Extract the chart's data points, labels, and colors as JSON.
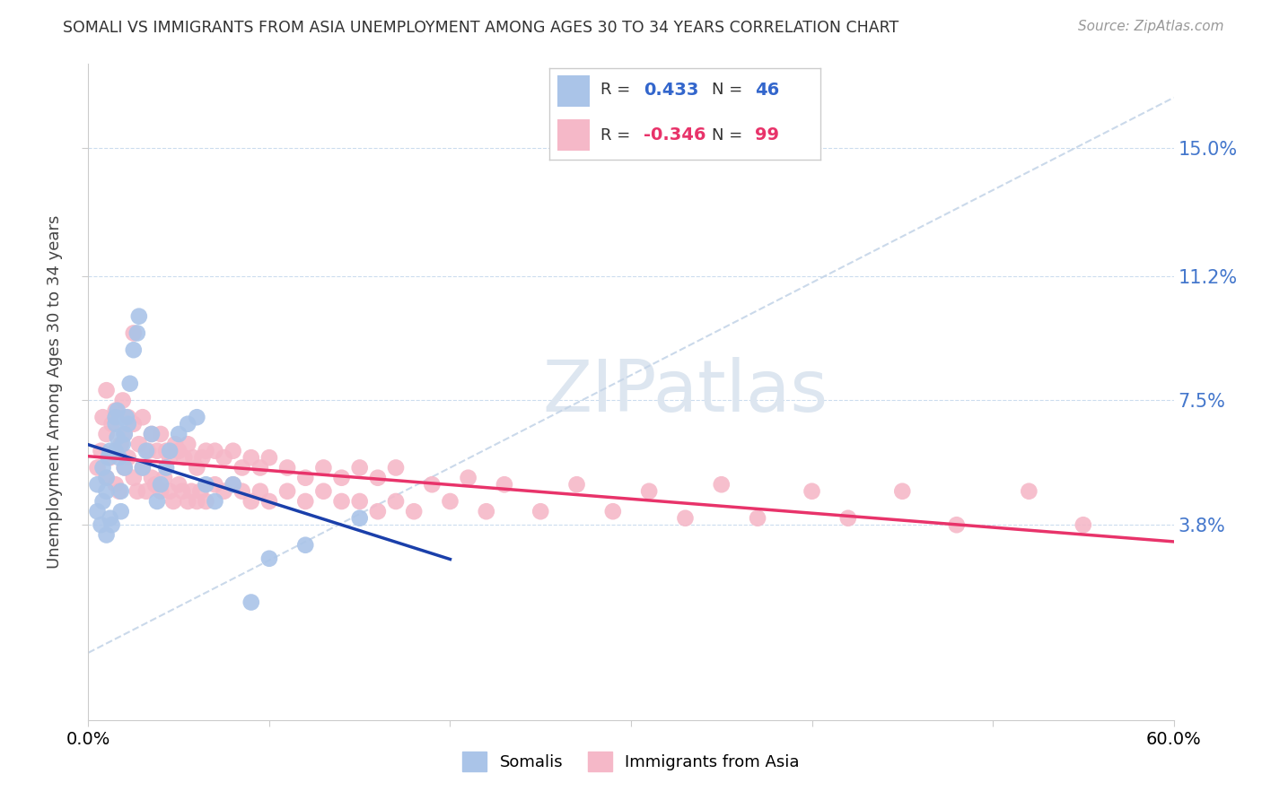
{
  "title": "SOMALI VS IMMIGRANTS FROM ASIA UNEMPLOYMENT AMONG AGES 30 TO 34 YEARS CORRELATION CHART",
  "source": "Source: ZipAtlas.com",
  "ylabel": "Unemployment Among Ages 30 to 34 years",
  "ytick_labels": [
    "3.8%",
    "7.5%",
    "11.2%",
    "15.0%"
  ],
  "ytick_values": [
    0.038,
    0.075,
    0.112,
    0.15
  ],
  "xlim": [
    0.0,
    0.6
  ],
  "ylim": [
    -0.02,
    0.175
  ],
  "somali_R": 0.433,
  "somali_N": 46,
  "asia_R": -0.346,
  "asia_N": 99,
  "somali_color": "#aac4e8",
  "asia_color": "#f5b8c8",
  "somali_line_color": "#1a3faa",
  "asia_line_color": "#e8336a",
  "diagonal_color": "#c5d5e8",
  "background_color": "#FFFFFF",
  "somali_x": [
    0.005,
    0.005,
    0.007,
    0.008,
    0.008,
    0.01,
    0.01,
    0.01,
    0.011,
    0.012,
    0.012,
    0.013,
    0.015,
    0.015,
    0.015,
    0.016,
    0.016,
    0.017,
    0.018,
    0.018,
    0.019,
    0.02,
    0.02,
    0.021,
    0.022,
    0.023,
    0.025,
    0.027,
    0.028,
    0.03,
    0.032,
    0.035,
    0.038,
    0.04,
    0.043,
    0.045,
    0.05,
    0.055,
    0.06,
    0.065,
    0.07,
    0.08,
    0.09,
    0.1,
    0.12,
    0.15
  ],
  "somali_y": [
    0.05,
    0.042,
    0.038,
    0.045,
    0.055,
    0.052,
    0.048,
    0.035,
    0.058,
    0.04,
    0.06,
    0.038,
    0.06,
    0.07,
    0.068,
    0.064,
    0.072,
    0.058,
    0.042,
    0.048,
    0.062,
    0.055,
    0.065,
    0.07,
    0.068,
    0.08,
    0.09,
    0.095,
    0.1,
    0.055,
    0.06,
    0.065,
    0.045,
    0.05,
    0.055,
    0.06,
    0.065,
    0.068,
    0.07,
    0.05,
    0.045,
    0.05,
    0.015,
    0.028,
    0.032,
    0.04
  ],
  "asia_x": [
    0.005,
    0.007,
    0.008,
    0.01,
    0.01,
    0.012,
    0.013,
    0.015,
    0.015,
    0.017,
    0.018,
    0.019,
    0.02,
    0.02,
    0.022,
    0.022,
    0.025,
    0.025,
    0.027,
    0.028,
    0.03,
    0.03,
    0.032,
    0.033,
    0.035,
    0.035,
    0.037,
    0.038,
    0.04,
    0.04,
    0.042,
    0.043,
    0.045,
    0.045,
    0.047,
    0.048,
    0.05,
    0.05,
    0.052,
    0.053,
    0.055,
    0.055,
    0.057,
    0.058,
    0.06,
    0.06,
    0.062,
    0.063,
    0.065,
    0.065,
    0.07,
    0.07,
    0.075,
    0.075,
    0.08,
    0.08,
    0.085,
    0.085,
    0.09,
    0.09,
    0.095,
    0.095,
    0.1,
    0.1,
    0.11,
    0.11,
    0.12,
    0.12,
    0.13,
    0.13,
    0.14,
    0.14,
    0.15,
    0.15,
    0.16,
    0.16,
    0.17,
    0.17,
    0.18,
    0.19,
    0.2,
    0.21,
    0.22,
    0.23,
    0.25,
    0.27,
    0.29,
    0.31,
    0.33,
    0.35,
    0.37,
    0.4,
    0.42,
    0.45,
    0.48,
    0.52,
    0.55,
    0.01,
    0.025
  ],
  "asia_y": [
    0.055,
    0.06,
    0.07,
    0.052,
    0.065,
    0.058,
    0.068,
    0.05,
    0.072,
    0.048,
    0.062,
    0.075,
    0.055,
    0.065,
    0.058,
    0.07,
    0.052,
    0.068,
    0.048,
    0.062,
    0.055,
    0.07,
    0.048,
    0.06,
    0.052,
    0.065,
    0.05,
    0.06,
    0.048,
    0.065,
    0.052,
    0.06,
    0.048,
    0.058,
    0.045,
    0.062,
    0.05,
    0.06,
    0.048,
    0.058,
    0.045,
    0.062,
    0.048,
    0.058,
    0.045,
    0.055,
    0.048,
    0.058,
    0.045,
    0.06,
    0.05,
    0.06,
    0.048,
    0.058,
    0.05,
    0.06,
    0.048,
    0.055,
    0.045,
    0.058,
    0.048,
    0.055,
    0.045,
    0.058,
    0.048,
    0.055,
    0.045,
    0.052,
    0.048,
    0.055,
    0.045,
    0.052,
    0.045,
    0.055,
    0.042,
    0.052,
    0.045,
    0.055,
    0.042,
    0.05,
    0.045,
    0.052,
    0.042,
    0.05,
    0.042,
    0.05,
    0.042,
    0.048,
    0.04,
    0.05,
    0.04,
    0.048,
    0.04,
    0.048,
    0.038,
    0.048,
    0.038,
    0.078,
    0.095
  ]
}
